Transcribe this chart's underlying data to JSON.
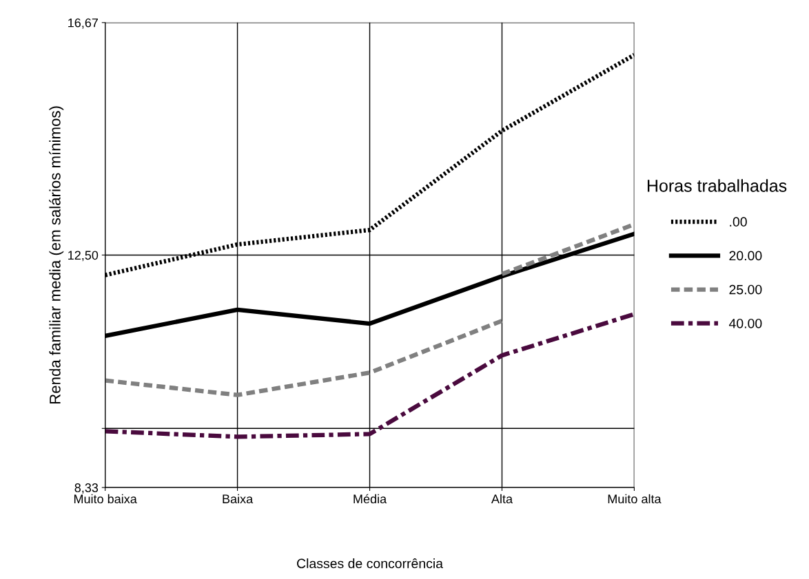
{
  "chart_data": {
    "type": "line",
    "xlabel": "Classes de concorrência",
    "ylabel": "Renda familiar media (em salários mínimos)",
    "legend_title": "Horas trabalhadas",
    "legend": "right",
    "grid": true,
    "categories": [
      "Muito baixa",
      "Baixa",
      "Média",
      "Alta",
      "Muito alta"
    ],
    "ylim": [
      8.33,
      16.67
    ],
    "yticks": [
      {
        "value": 8.33,
        "label": "8,33"
      },
      {
        "value": 9.39,
        "label": null
      },
      {
        "value": 12.5,
        "label": "12,50"
      },
      {
        "value": 16.67,
        "label": "16,67"
      }
    ],
    "series": [
      {
        "name": ".00",
        "color": "#000000",
        "line_style": "dotted",
        "values": [
          12.14,
          12.69,
          12.95,
          14.73,
          16.09
        ]
      },
      {
        "name": "20.00",
        "color": "#000000",
        "line_style": "solid",
        "values": [
          11.05,
          11.52,
          11.27,
          12.12,
          12.88
        ]
      },
      {
        "name": "25.00",
        "color": "#808080",
        "line_style": "dashed",
        "values": [
          10.25,
          9.99,
          10.39,
          11.32,
          null
        ]
      },
      {
        "color": "#808080",
        "line_style": "dashed",
        "values": [
          null,
          null,
          null,
          12.16,
          13.05
        ]
      },
      {
        "name": "40.00",
        "color": "#4a0a3e",
        "line_style": "dashdot",
        "values": [
          9.34,
          9.24,
          9.29,
          10.7,
          11.44
        ]
      }
    ]
  }
}
